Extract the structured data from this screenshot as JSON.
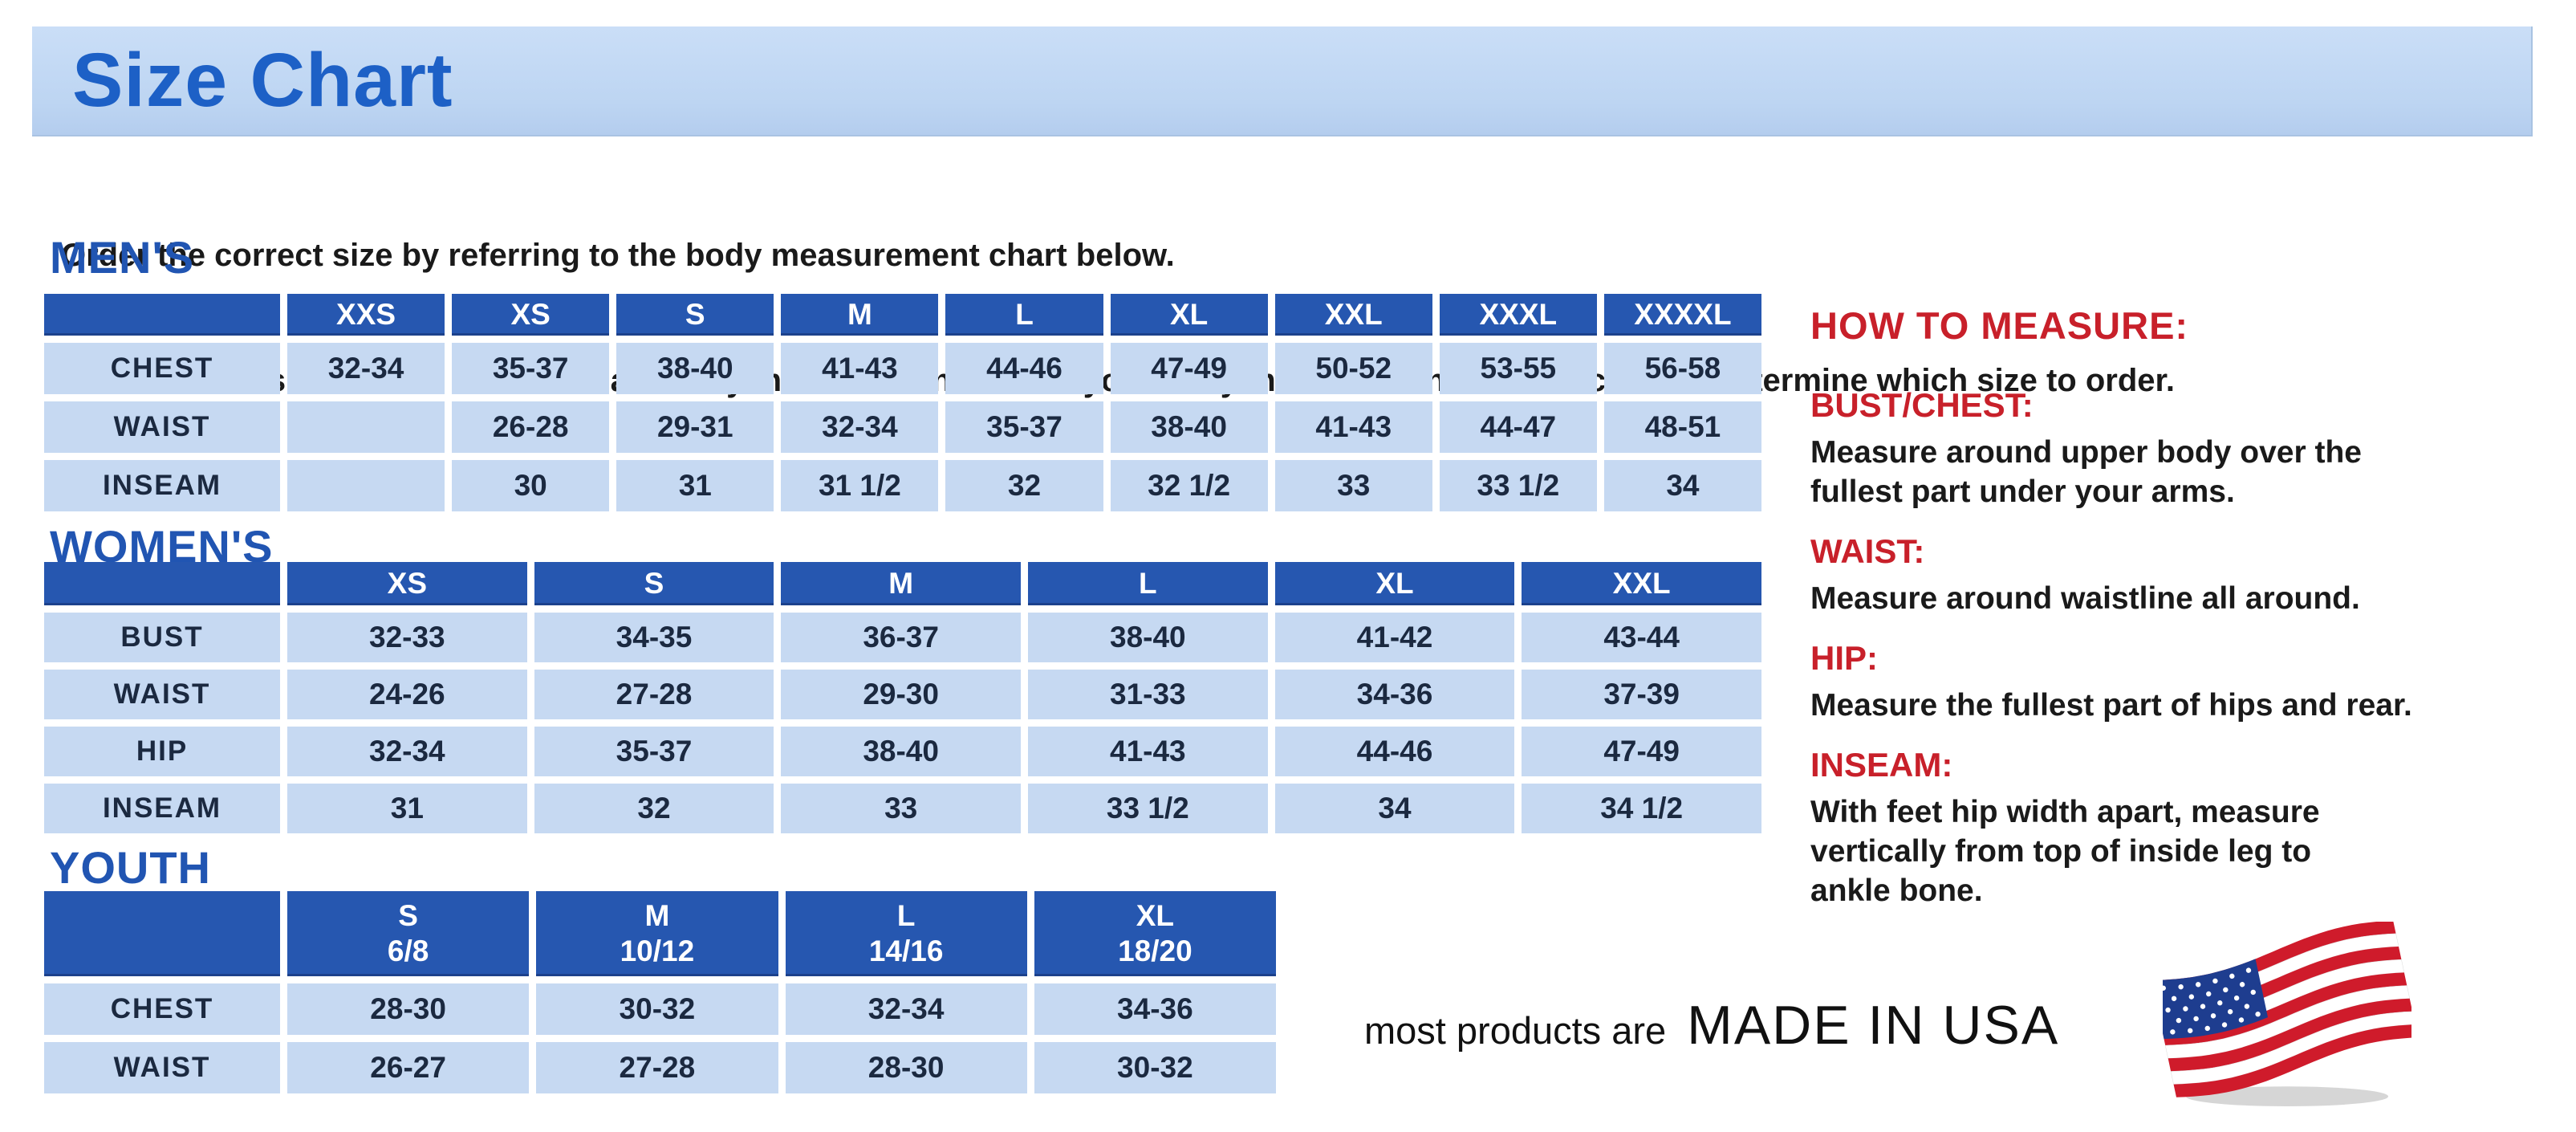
{
  "banner": {
    "title": "Size Chart"
  },
  "intro": {
    "line1": "Order the correct size by referring to the body measurement chart below.",
    "line2": "Measurements shown on size chart are body measurements.  Find your body measurements on the chart to determine which size to order."
  },
  "tables": [
    {
      "id": "mens",
      "title": "MEN'S",
      "columns": [
        "XXS",
        "XS",
        "S",
        "M",
        "L",
        "XL",
        "XXL",
        "XXXL",
        "XXXXL"
      ],
      "rows": [
        {
          "label": "CHEST",
          "values": [
            "32-34",
            "35-37",
            "38-40",
            "41-43",
            "44-46",
            "47-49",
            "50-52",
            "53-55",
            "56-58"
          ]
        },
        {
          "label": "WAIST",
          "values": [
            "",
            "26-28",
            "29-31",
            "32-34",
            "35-37",
            "38-40",
            "41-43",
            "44-47",
            "48-51"
          ]
        },
        {
          "label": "INSEAM",
          "values": [
            "",
            "30",
            "31",
            "31 1/2",
            "32",
            "32 1/2",
            "33",
            "33 1/2",
            "34"
          ]
        }
      ]
    },
    {
      "id": "womens",
      "title": "WOMEN'S",
      "columns": [
        "XS",
        "S",
        "M",
        "L",
        "XL",
        "XXL"
      ],
      "rows": [
        {
          "label": "BUST",
          "values": [
            "32-33",
            "34-35",
            "36-37",
            "38-40",
            "41-42",
            "43-44"
          ]
        },
        {
          "label": "WAIST",
          "values": [
            "24-26",
            "27-28",
            "29-30",
            "31-33",
            "34-36",
            "37-39"
          ]
        },
        {
          "label": "HIP",
          "values": [
            "32-34",
            "35-37",
            "38-40",
            "41-43",
            "44-46",
            "47-49"
          ]
        },
        {
          "label": "INSEAM",
          "values": [
            "31",
            "32",
            "33",
            "33 1/2",
            "34",
            "34 1/2"
          ]
        }
      ]
    },
    {
      "id": "youth",
      "title": "YOUTH",
      "columns": [
        {
          "size": "S",
          "range": "6/8"
        },
        {
          "size": "M",
          "range": "10/12"
        },
        {
          "size": "L",
          "range": "14/16"
        },
        {
          "size": "XL",
          "range": "18/20"
        }
      ],
      "rows": [
        {
          "label": "CHEST",
          "values": [
            "28-30",
            "30-32",
            "32-34",
            "34-36"
          ]
        },
        {
          "label": "WAIST",
          "values": [
            "26-27",
            "27-28",
            "28-30",
            "30-32"
          ]
        }
      ]
    }
  ],
  "how_to_measure": {
    "title": "HOW TO MEASURE:",
    "sections": [
      {
        "heading": "BUST/CHEST:",
        "text": "Measure around upper body over the\nfullest part under your arms."
      },
      {
        "heading": "WAIST:",
        "text": "Measure around waistline all around."
      },
      {
        "heading": "HIP:",
        "text": "Measure the fullest part of hips and rear."
      },
      {
        "heading": "INSEAM:",
        "text": "With feet hip width apart, measure\nvertically from top of inside leg to\nankle bone."
      }
    ]
  },
  "footer": {
    "prefix": "most products are",
    "made_in": "MADE IN USA",
    "flag_icon": "us-flag-icon"
  },
  "colors": {
    "title_blue": "#1d60c6",
    "section_blue": "#2155b2",
    "table_header_blue": "#2657b0",
    "cell_light_blue": "#c6d9f2",
    "cell_text_navy": "#1b2940",
    "accent_red": "#c8202a",
    "text_black": "#1a1a1a",
    "flag_red": "#cf1b2b",
    "flag_blue": "#1e3d8f",
    "flag_white": "#ffffff"
  }
}
